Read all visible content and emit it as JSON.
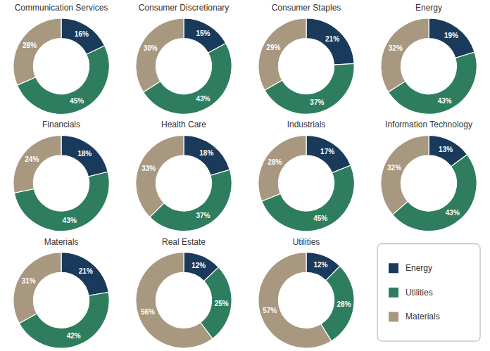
{
  "chart_data": [
    {
      "type": "pie",
      "title": "Communication Services",
      "categories": [
        "Energy",
        "Utilities",
        "Materials"
      ],
      "values": [
        16,
        45,
        28
      ],
      "value_labels": [
        "16%",
        "45%",
        "28%"
      ],
      "colors": [
        "#1a3a5c",
        "#2e7d5e",
        "#a89880"
      ],
      "data_labels": true,
      "legend": "lower right"
    },
    {
      "type": "pie",
      "title": "Consumer Discretionary",
      "categories": [
        "Energy",
        "Utilities",
        "Materials"
      ],
      "values": [
        15,
        43,
        30
      ],
      "value_labels": [
        "15%",
        "43%",
        "30%"
      ],
      "colors": [
        "#1a3a5c",
        "#2e7d5e",
        "#a89880"
      ],
      "data_labels": true
    },
    {
      "type": "pie",
      "title": "Consumer Staples",
      "categories": [
        "Energy",
        "Utilities",
        "Materials"
      ],
      "values": [
        21,
        37,
        29
      ],
      "value_labels": [
        "21%",
        "37%",
        "29%"
      ],
      "colors": [
        "#1a3a5c",
        "#2e7d5e",
        "#a89880"
      ],
      "data_labels": true
    },
    {
      "type": "pie",
      "title": "Energy",
      "categories": [
        "Energy",
        "Utilities",
        "Materials"
      ],
      "values": [
        19,
        43,
        32
      ],
      "value_labels": [
        "19%",
        "43%",
        "32%"
      ],
      "colors": [
        "#1a3a5c",
        "#2e7d5e",
        "#a89880"
      ],
      "data_labels": true
    },
    {
      "type": "pie",
      "title": "Financials",
      "categories": [
        "Energy",
        "Utilities",
        "Materials"
      ],
      "values": [
        18,
        43,
        24
      ],
      "value_labels": [
        "18%",
        "43%",
        "24%"
      ],
      "colors": [
        "#1a3a5c",
        "#2e7d5e",
        "#a89880"
      ],
      "data_labels": true
    },
    {
      "type": "pie",
      "title": "Health Care",
      "categories": [
        "Energy",
        "Utilities",
        "Materials"
      ],
      "values": [
        18,
        37,
        33
      ],
      "value_labels": [
        "18%",
        "37%",
        "33%"
      ],
      "colors": [
        "#1a3a5c",
        "#2e7d5e",
        "#a89880"
      ],
      "data_labels": true
    },
    {
      "type": "pie",
      "title": "Industrials",
      "categories": [
        "Energy",
        "Utilities",
        "Materials"
      ],
      "values": [
        17,
        45,
        28
      ],
      "value_labels": [
        "17%",
        "45%",
        "28%"
      ],
      "colors": [
        "#1a3a5c",
        "#2e7d5e",
        "#a89880"
      ],
      "data_labels": true
    },
    {
      "type": "pie",
      "title": "Information Technology",
      "categories": [
        "Energy",
        "Utilities",
        "Materials"
      ],
      "values": [
        13,
        43,
        32
      ],
      "value_labels": [
        "13%",
        "43%",
        "32%"
      ],
      "colors": [
        "#1a3a5c",
        "#2e7d5e",
        "#a89880"
      ],
      "data_labels": true
    },
    {
      "type": "pie",
      "title": "Materials",
      "categories": [
        "Energy",
        "Utilities",
        "Materials"
      ],
      "values": [
        21,
        42,
        31
      ],
      "value_labels": [
        "21%",
        "42%",
        "31%"
      ],
      "colors": [
        "#1a3a5c",
        "#2e7d5e",
        "#a89880"
      ],
      "data_labels": true
    },
    {
      "type": "pie",
      "title": "Real Estate",
      "categories": [
        "Energy",
        "Utilities",
        "Materials"
      ],
      "values": [
        12,
        25,
        56
      ],
      "value_labels": [
        "12%",
        "25%",
        "56%"
      ],
      "colors": [
        "#1a3a5c",
        "#2e7d5e",
        "#a89880"
      ],
      "data_labels": true
    },
    {
      "type": "pie",
      "title": "Utilities",
      "categories": [
        "Energy",
        "Utilities",
        "Materials"
      ],
      "values": [
        12,
        28,
        57
      ],
      "value_labels": [
        "12%",
        "28%",
        "57%"
      ],
      "colors": [
        "#1a3a5c",
        "#2e7d5e",
        "#a89880"
      ],
      "data_labels": true
    }
  ]
}
